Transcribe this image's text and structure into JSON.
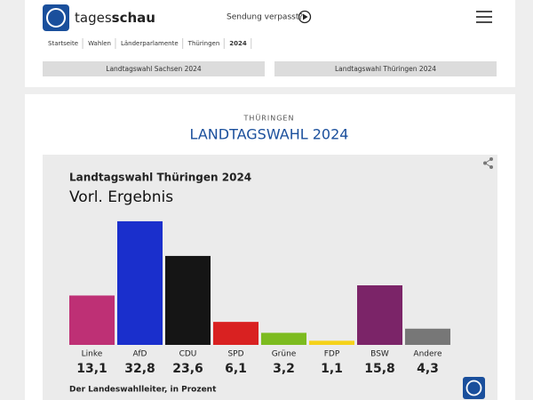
{
  "header": {
    "logo_light": "tages",
    "logo_bold": "schau",
    "missed": "Sendung verpasst?"
  },
  "breadcrumbs": [
    "Startseite",
    "Wahlen",
    "Länderparlamente",
    "Thüringen",
    "2024"
  ],
  "tabs": [
    "Landtagswahl Sachsen 2024",
    "Landtagswahl Thüringen 2024"
  ],
  "section": {
    "kicker": "THÜRINGEN",
    "title": "LANDTAGSWAHL 2024"
  },
  "chart_data": {
    "type": "bar",
    "title": "Landtagswahl Thüringen 2024",
    "subtitle": "Vorl. Ergebnis",
    "source": "Der Landeswahlleiter, in Prozent",
    "categories": [
      "Linke",
      "AfD",
      "CDU",
      "SPD",
      "Grüne",
      "FDP",
      "BSW",
      "Andere"
    ],
    "values": [
      13.1,
      32.8,
      23.6,
      6.1,
      3.2,
      1.1,
      15.8,
      4.3
    ],
    "value_labels": [
      "13,1",
      "32,8",
      "23,6",
      "6,1",
      "3,2",
      "1,1",
      "15,8",
      "4,3"
    ],
    "colors": [
      "#be3075",
      "#1a2fcc",
      "#151515",
      "#d92121",
      "#7cbb1f",
      "#f5d21a",
      "#7b2468",
      "#777777"
    ]
  }
}
